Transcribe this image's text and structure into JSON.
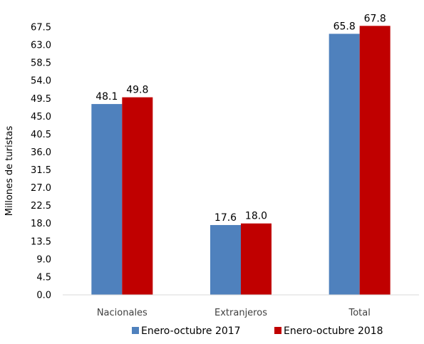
{
  "chart_data": {
    "type": "bar",
    "categories": [
      "Nacionales",
      "Extranjeros",
      "Total"
    ],
    "series": [
      {
        "name": "Enero-octubre 2017",
        "values": [
          48.1,
          17.6,
          65.8
        ],
        "labels": [
          "48.1",
          "17.6",
          "65.8"
        ],
        "color": "#4f81bd"
      },
      {
        "name": "Enero-octubre 2018",
        "values": [
          49.8,
          18.0,
          67.8
        ],
        "labels": [
          "49.8",
          "18.0",
          "67.8"
        ],
        "color": "#c00000"
      }
    ],
    "ylabel": "Millones de turistas",
    "ylim": [
      0,
      67.5
    ],
    "yticks": [
      "0.0",
      "4.5",
      "9.0",
      "13.5",
      "18.0",
      "22.5",
      "27.0",
      "31.5",
      "36.0",
      "40.5",
      "45.0",
      "49.5",
      "54.0",
      "58.5",
      "63.0",
      "67.5"
    ],
    "grid": false,
    "legend_position": "bottom"
  }
}
